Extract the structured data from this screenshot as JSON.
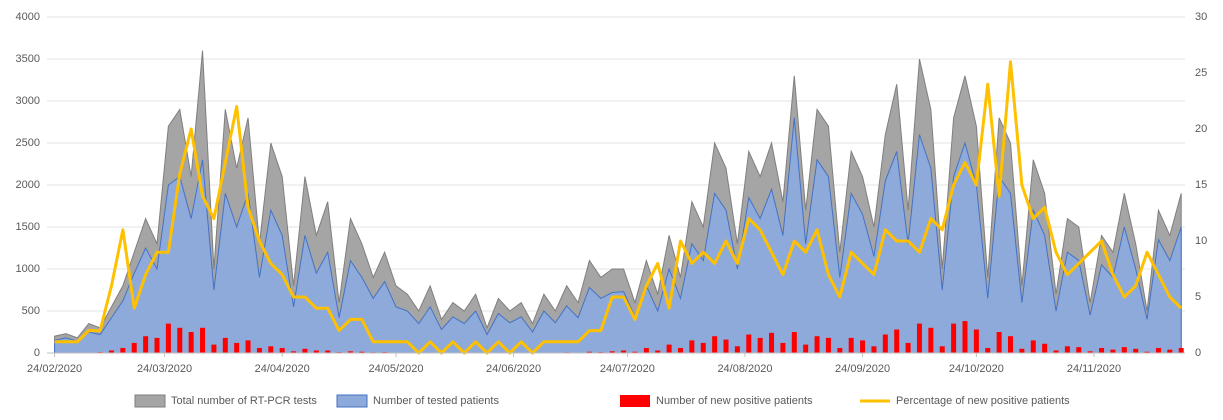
{
  "chart_data": {
    "type": "combo",
    "x": [
      "24/02/2020",
      "27/02/2020",
      "01/03/2020",
      "04/03/2020",
      "07/03/2020",
      "10/03/2020",
      "13/03/2020",
      "16/03/2020",
      "19/03/2020",
      "22/03/2020",
      "25/03/2020",
      "28/03/2020",
      "31/03/2020",
      "03/04/2020",
      "06/04/2020",
      "09/04/2020",
      "12/04/2020",
      "15/04/2020",
      "18/04/2020",
      "21/04/2020",
      "24/04/2020",
      "27/04/2020",
      "30/04/2020",
      "03/05/2020",
      "06/05/2020",
      "09/05/2020",
      "12/05/2020",
      "15/05/2020",
      "18/05/2020",
      "21/05/2020",
      "24/05/2020",
      "27/05/2020",
      "30/05/2020",
      "02/06/2020",
      "05/06/2020",
      "08/06/2020",
      "11/06/2020",
      "14/06/2020",
      "17/06/2020",
      "20/06/2020",
      "23/06/2020",
      "26/06/2020",
      "29/06/2020",
      "02/07/2020",
      "05/07/2020",
      "08/07/2020",
      "11/07/2020",
      "14/07/2020",
      "17/07/2020",
      "20/07/2020",
      "23/07/2020",
      "26/07/2020",
      "29/07/2020",
      "01/08/2020",
      "04/08/2020",
      "07/08/2020",
      "10/08/2020",
      "13/08/2020",
      "16/08/2020",
      "19/08/2020",
      "22/08/2020",
      "25/08/2020",
      "28/08/2020",
      "31/08/2020",
      "03/09/2020",
      "06/09/2020",
      "09/09/2020",
      "12/09/2020",
      "15/09/2020",
      "18/09/2020",
      "21/09/2020",
      "24/09/2020",
      "27/09/2020",
      "30/09/2020",
      "03/10/2020",
      "06/10/2020",
      "09/10/2020",
      "12/10/2020",
      "15/10/2020",
      "18/10/2020",
      "21/10/2020",
      "24/10/2020",
      "27/10/2020",
      "30/10/2020",
      "02/11/2020",
      "05/11/2020",
      "08/11/2020",
      "11/11/2020",
      "14/11/2020",
      "17/11/2020",
      "20/11/2020",
      "23/11/2020",
      "26/11/2020",
      "29/11/2020",
      "02/12/2020",
      "05/12/2020",
      "08/12/2020",
      "11/12/2020",
      "14/12/2020",
      "17/12/2020"
    ],
    "series": [
      {
        "name": "Total number of RT-PCR tests",
        "type": "area",
        "color": "#a5a5a5",
        "stroke": "#7f7f7f",
        "values": [
          200,
          230,
          180,
          350,
          300,
          550,
          800,
          1200,
          1600,
          1300,
          2700,
          2900,
          2100,
          3600,
          1000,
          2900,
          2200,
          2800,
          1300,
          2500,
          2100,
          800,
          2100,
          1400,
          1800,
          600,
          1600,
          1300,
          900,
          1200,
          800,
          700,
          500,
          800,
          400,
          600,
          500,
          700,
          300,
          650,
          500,
          600,
          350,
          700,
          500,
          800,
          600,
          1100,
          900,
          1000,
          1000,
          600,
          1100,
          700,
          1400,
          900,
          1800,
          1500,
          2500,
          2200,
          1300,
          2400,
          2100,
          2500,
          1800,
          3300,
          1700,
          2900,
          2700,
          1200,
          2400,
          2100,
          1500,
          2600,
          3200,
          1700,
          3500,
          2900,
          1000,
          2800,
          3300,
          2700,
          900,
          2800,
          2500,
          800,
          2300,
          1900,
          700,
          1600,
          1500,
          600,
          1400,
          1200,
          1900,
          1300,
          500,
          1700,
          1400,
          1900
        ]
      },
      {
        "name": "Number of tested patients",
        "type": "area",
        "color": "#8eaadb",
        "stroke": "#4472c4",
        "values": [
          150,
          180,
          140,
          250,
          220,
          420,
          620,
          950,
          1250,
          1000,
          2000,
          2100,
          1600,
          2300,
          750,
          1900,
          1500,
          1900,
          900,
          1700,
          1400,
          550,
          1400,
          950,
          1200,
          420,
          1100,
          900,
          650,
          850,
          550,
          500,
          350,
          550,
          280,
          430,
          350,
          500,
          220,
          470,
          360,
          430,
          250,
          500,
          360,
          560,
          420,
          780,
          650,
          720,
          730,
          430,
          800,
          500,
          1000,
          650,
          1300,
          1100,
          1900,
          1700,
          1000,
          1850,
          1600,
          1950,
          1400,
          2800,
          1300,
          2300,
          2100,
          900,
          1900,
          1650,
          1150,
          2050,
          2400,
          1300,
          2600,
          2200,
          750,
          2100,
          2500,
          2000,
          650,
          2100,
          1900,
          600,
          1700,
          1400,
          500,
          1200,
          1100,
          450,
          1050,
          900,
          1500,
          1000,
          400,
          1350,
          1100,
          1500
        ]
      },
      {
        "name": "Number of new positive patients",
        "type": "bar",
        "color": "#ff0000",
        "values": [
          0,
          0,
          2,
          5,
          10,
          30,
          60,
          120,
          200,
          180,
          350,
          300,
          250,
          300,
          100,
          180,
          120,
          150,
          60,
          80,
          60,
          20,
          50,
          30,
          30,
          10,
          20,
          15,
          8,
          10,
          5,
          5,
          3,
          5,
          2,
          3,
          2,
          4,
          2,
          3,
          2,
          3,
          2,
          5,
          3,
          8,
          5,
          15,
          10,
          20,
          30,
          15,
          60,
          30,
          100,
          60,
          150,
          120,
          200,
          160,
          80,
          220,
          180,
          240,
          120,
          250,
          100,
          200,
          180,
          60,
          180,
          150,
          80,
          220,
          280,
          120,
          350,
          300,
          80,
          350,
          380,
          280,
          60,
          250,
          200,
          50,
          150,
          110,
          30,
          80,
          70,
          20,
          60,
          40,
          70,
          50,
          15,
          60,
          40,
          60
        ]
      },
      {
        "name": "Percentage of new positive patients",
        "type": "line",
        "axis": "y2",
        "color": "#ffc000",
        "values": [
          1,
          1,
          1,
          2,
          2,
          6,
          11,
          4,
          7,
          9,
          9,
          16,
          20,
          14,
          12,
          17,
          22,
          13,
          10,
          8,
          7,
          5,
          5,
          4,
          4,
          2,
          3,
          3,
          1,
          1,
          1,
          1,
          0,
          1,
          0,
          1,
          0,
          1,
          0,
          1,
          0,
          1,
          0,
          1,
          1,
          1,
          1,
          2,
          2,
          5,
          5,
          3,
          6,
          8,
          4,
          10,
          8,
          9,
          8,
          10,
          8,
          12,
          11,
          9,
          7,
          10,
          9,
          11,
          7,
          5,
          9,
          8,
          7,
          11,
          10,
          10,
          9,
          12,
          11,
          15,
          17,
          15,
          24,
          14,
          26,
          15,
          12,
          13,
          9,
          7,
          8,
          9,
          10,
          7,
          5,
          6,
          9,
          7,
          5,
          4
        ]
      }
    ],
    "xlim": [
      "22/02/2020",
      "18/12/2020"
    ],
    "xticks": [
      "24/02/2020",
      "24/03/2020",
      "24/04/2020",
      "24/05/2020",
      "24/06/2020",
      "24/07/2020",
      "24/08/2020",
      "24/09/2020",
      "24/10/2020",
      "24/11/2020"
    ],
    "ylim": [
      0,
      4000
    ],
    "yticks": [
      0,
      500,
      1000,
      1500,
      2000,
      2500,
      3000,
      3500,
      4000
    ],
    "y2lim": [
      0,
      30
    ],
    "y2ticks": [
      0,
      5,
      10,
      15,
      20,
      25,
      30
    ],
    "grid": true
  }
}
